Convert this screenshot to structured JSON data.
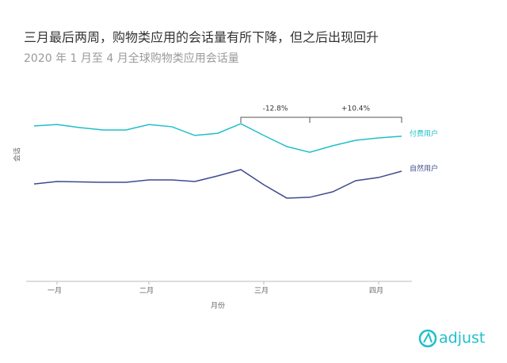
{
  "chart_data": {
    "type": "line",
    "title": "三月最后两周，购物类应用的会话量有所下降，但之后出现回升",
    "subtitle": "2020 年 1 月至 4 月全球购物类应用会话量",
    "y_label": "会话",
    "x_label": "月份",
    "categories": [
      null,
      "一月",
      null,
      null,
      null,
      "二月",
      null,
      null,
      null,
      null,
      "三月",
      null,
      null,
      null,
      null,
      "四月",
      null
    ],
    "ylim": [
      0,
      100
    ],
    "series": [
      {
        "name": "付费用户",
        "color": "#1fbfcb",
        "values": [
          76.9,
          77.6,
          76.1,
          74.9,
          74.9,
          77.6,
          76.5,
          72.2,
          73.3,
          78.0,
          72.2,
          66.7,
          63.9,
          67.1,
          69.8,
          71.0,
          71.8
        ]
      },
      {
        "name": "自然用户",
        "color": "#3f4b8c",
        "values": [
          48.2,
          49.4,
          49.2,
          49.0,
          49.0,
          50.2,
          50.2,
          49.4,
          52.2,
          55.3,
          47.8,
          41.2,
          41.6,
          44.3,
          49.8,
          51.4,
          54.5
        ]
      }
    ],
    "annotations": [
      "-12.8%",
      "+10.4%"
    ],
    "logo": "adjust"
  }
}
